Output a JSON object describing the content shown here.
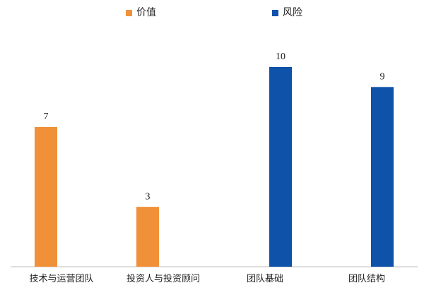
{
  "chart_data": {
    "type": "bar",
    "categories": [
      "技术与运营团队",
      "投资人与投资顾问",
      "团队基础",
      "团队结构"
    ],
    "series": [
      {
        "name": "价值",
        "color": "#f0913a",
        "values": [
          7,
          3,
          null,
          null
        ]
      },
      {
        "name": "风险",
        "color": "#0f52a9",
        "values": [
          null,
          null,
          10,
          9
        ]
      }
    ],
    "legend": "top"
  }
}
